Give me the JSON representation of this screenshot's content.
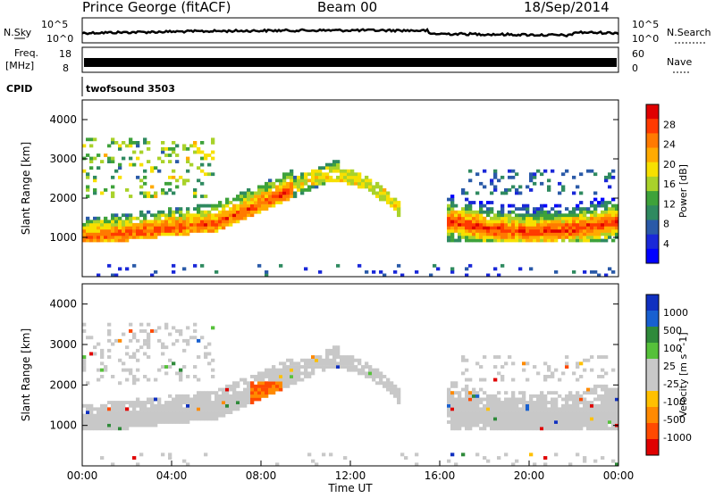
{
  "header": {
    "title": "Prince George (fitACF)",
    "beam": "Beam 00",
    "date": "18/Sep/2014"
  },
  "strips": {
    "nsky_label": "N.Sky",
    "nsky_top": "10^5",
    "nsky_bottom": "10^0",
    "nsearch_label": "N.Search",
    "nsearch_top": "10^5",
    "nsearch_bottom": "10^0",
    "freq_label": "Freq.",
    "freq_unit": "[MHz]",
    "freq_top": "18",
    "freq_bottom": "8",
    "nave_label": "Nave",
    "nave_top": "60",
    "nave_bottom": "0",
    "cpid_label": "CPID",
    "cpid_value": "twofsound 3503"
  },
  "axes": {
    "ylabel": "Slant Range [km]",
    "xlabel": "Time UT",
    "x_ticks": [
      "00:00",
      "04:00",
      "08:00",
      "12:00",
      "16:00",
      "20:00",
      "00:00"
    ],
    "y_ticks": [
      "1000",
      "2000",
      "3000",
      "4000"
    ]
  },
  "power_colorbar": {
    "label": "Power [dB]",
    "ticks": [
      "28",
      "24",
      "20",
      "16",
      "12",
      "8",
      "4"
    ],
    "colors": [
      "#e00000",
      "#ff3a00",
      "#ff7a00",
      "#ffaa00",
      "#f7e000",
      "#a9d22a",
      "#3ea23a",
      "#2f8a60",
      "#2a5aa8",
      "#1a28d8",
      "#0000ff"
    ]
  },
  "velocity_colorbar": {
    "label": "Velocity [m s^-1]",
    "ticks": [
      "1000",
      "500",
      "100",
      "25",
      "-25",
      "-100",
      "-500",
      "-1000"
    ],
    "colors": [
      "#1030c0",
      "#1860d0",
      "#2f8a3a",
      "#56c13a",
      "#c8c8c8",
      "#c8c8c8",
      "#ffc000",
      "#ff8a00",
      "#ff4a00",
      "#e00000"
    ]
  },
  "chart_data": [
    {
      "type": "heatmap",
      "title": "Power",
      "x_range_hours": [
        0,
        24
      ],
      "ylim": [
        0,
        4500
      ],
      "features": [
        {
          "name": "main echo band",
          "x_hours": [
            0,
            9.5
          ],
          "range_km": [
            900,
            1900
          ],
          "peak_power_db": 28
        },
        {
          "name": "rising trace",
          "x_hours": [
            7,
            11.5
          ],
          "range_km": [
            1700,
            2800
          ],
          "peak_power_db": 20
        },
        {
          "name": "evening echo band",
          "x_hours": [
            16.5,
            24
          ],
          "range_km": [
            900,
            2200
          ],
          "peak_power_db": 28
        },
        {
          "name": "upper scatter",
          "x_hours": [
            0,
            6
          ],
          "range_km": [
            2000,
            3500
          ],
          "peak_power_db": 12
        }
      ]
    },
    {
      "type": "heatmap",
      "title": "Velocity",
      "x_range_hours": [
        0,
        24
      ],
      "ylim": [
        0,
        4500
      ],
      "features": [
        {
          "name": "ground scatter",
          "x_hours": [
            0,
            24
          ],
          "range_km": [
            900,
            2900
          ],
          "velocity_ms": 0
        },
        {
          "name": "negative velocity patch",
          "x_hours": [
            7.5,
            9
          ],
          "range_km": [
            1500,
            2100
          ],
          "velocity_ms": -1000
        },
        {
          "name": "positive velocity patch",
          "x_hours": [
            7.5,
            10
          ],
          "range_km": [
            1000,
            1800
          ],
          "velocity_ms": 100
        }
      ]
    }
  ]
}
